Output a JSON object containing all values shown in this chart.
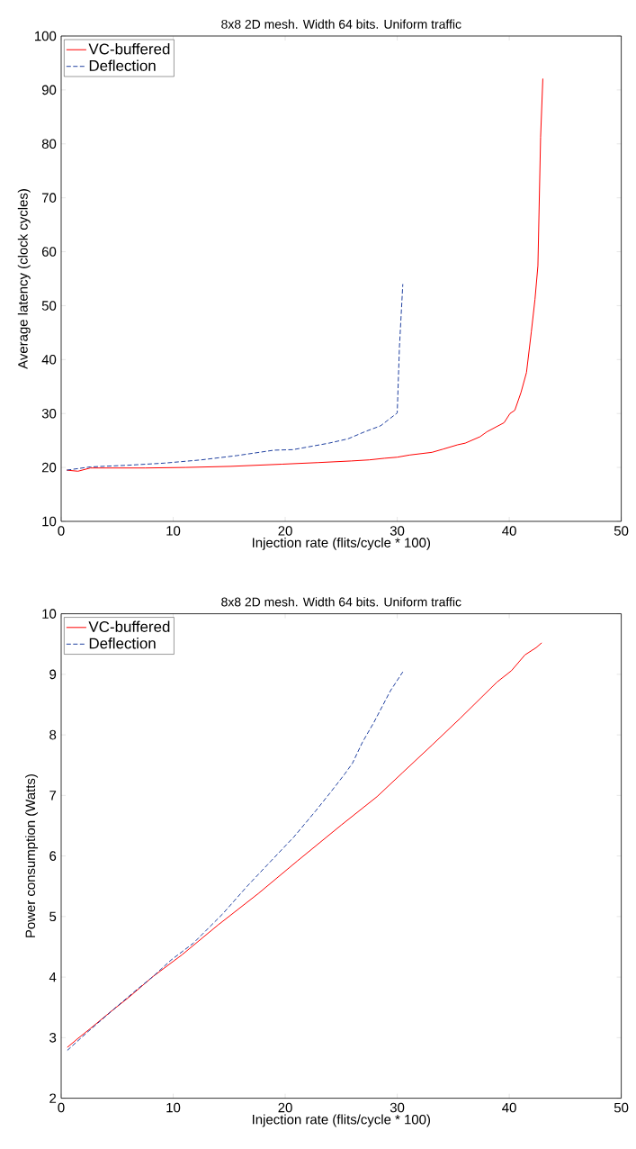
{
  "chart_data": [
    {
      "type": "line",
      "title": "8x8 2D mesh. Width 64 bits. Uniform traffic",
      "xlabel": "Injection rate (flits/cycle * 100)",
      "ylabel": "Average latency (clock cycles)",
      "xlim": [
        0,
        50
      ],
      "ylim": [
        10,
        100
      ],
      "xticks": [
        0,
        10,
        20,
        30,
        40,
        50
      ],
      "yticks": [
        10,
        20,
        30,
        40,
        50,
        60,
        70,
        80,
        90,
        100
      ],
      "legend": "top left",
      "series": [
        {
          "name": "VC-buffered",
          "color": "#ff0000",
          "line_style": "solid",
          "x": [
            0.5,
            1.5,
            2.6,
            7.5,
            11.1,
            15.1,
            19.7,
            22.95,
            25.9,
            27.5,
            28.85,
            30.0,
            31.1,
            33.1,
            34.1,
            35.4,
            36.07,
            37.4,
            38.0,
            39.54,
            40.07,
            40.5,
            41.05,
            41.54,
            41.97,
            42.3,
            42.56,
            42.8,
            43.0
          ],
          "values": [
            19.5,
            19.3,
            19.9,
            19.9,
            20.0,
            20.2,
            20.6,
            20.9,
            21.2,
            21.4,
            21.7,
            21.9,
            22.3,
            22.8,
            23.4,
            24.2,
            24.5,
            25.7,
            26.6,
            28.3,
            30.0,
            30.6,
            33.9,
            37.6,
            45.1,
            51.2,
            57.4,
            81.2,
            92.1
          ]
        },
        {
          "name": "Deflection",
          "color": "#2040a0",
          "line_style": "dashed",
          "x": [
            0.5,
            2.6,
            5.9,
            9.2,
            12.5,
            15.7,
            19.0,
            20.7,
            23.9,
            25.6,
            27.2,
            28.5,
            30.0,
            30.2,
            30.5
          ],
          "values": [
            19.5,
            20.1,
            20.4,
            20.8,
            21.4,
            22.2,
            23.2,
            23.3,
            24.5,
            25.3,
            26.7,
            27.7,
            30.1,
            42.4,
            54.0
          ]
        }
      ]
    },
    {
      "type": "line",
      "title": "8x8 2D mesh. Width 64 bits. Uniform traffic",
      "xlabel": "Injection rate (flits/cycle * 100)",
      "ylabel": "Power consumption (Watts)",
      "xlim": [
        0,
        50
      ],
      "ylim": [
        2,
        10
      ],
      "xticks": [
        0,
        10,
        20,
        30,
        40,
        50
      ],
      "yticks": [
        2,
        3,
        4,
        5,
        6,
        7,
        8,
        9,
        10
      ],
      "legend": "top left",
      "series": [
        {
          "name": "VC-buffered",
          "color": "#ff0000",
          "line_style": "solid",
          "x": [
            0.55,
            1.45,
            2.6,
            4.5,
            6.0,
            8.2,
            10.8,
            14.0,
            17.6,
            21.1,
            25.0,
            28.2,
            30.5,
            33.1,
            35.6,
            38.9,
            40.2,
            41.4,
            42.4,
            42.9
          ],
          "values": [
            2.84,
            2.98,
            3.15,
            3.44,
            3.66,
            4.01,
            4.37,
            4.86,
            5.38,
            5.92,
            6.51,
            6.98,
            7.38,
            7.83,
            8.27,
            8.87,
            9.06,
            9.32,
            9.44,
            9.52
          ]
        },
        {
          "name": "Deflection",
          "color": "#2040a0",
          "line_style": "dashed",
          "x": [
            0.55,
            2.4,
            4.7,
            6.6,
            8.2,
            9.8,
            11.8,
            14.4,
            16.6,
            18.9,
            20.8,
            22.7,
            24.0,
            25.3,
            26.0,
            26.9,
            27.9,
            29.4,
            30.5
          ],
          "values": [
            2.79,
            3.1,
            3.47,
            3.77,
            4.01,
            4.28,
            4.56,
            5.04,
            5.5,
            5.95,
            6.32,
            6.74,
            7.04,
            7.35,
            7.53,
            7.88,
            8.2,
            8.73,
            9.04
          ]
        }
      ]
    }
  ]
}
